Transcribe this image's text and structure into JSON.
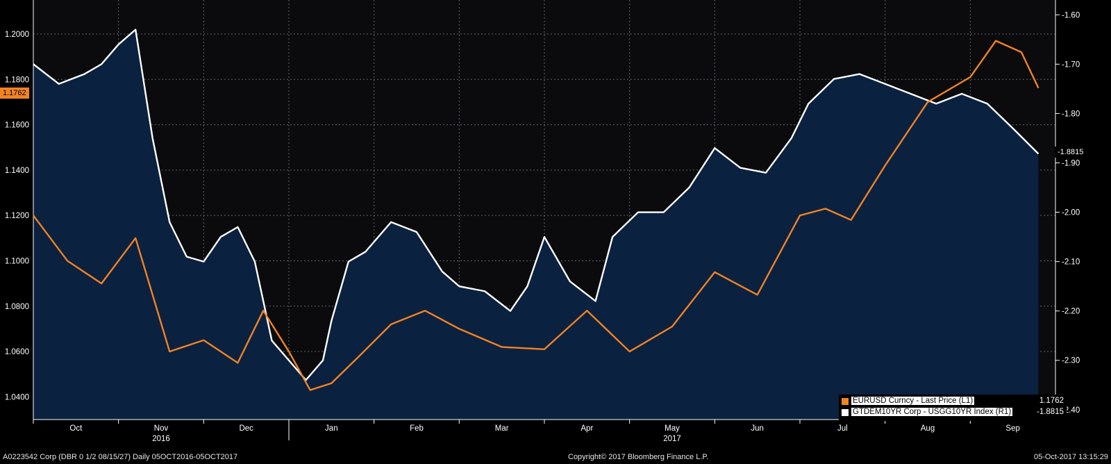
{
  "colors": {
    "background": "#000000",
    "plot_top": "#0b0b0d",
    "area_fill": "#0b2140",
    "eurusd": "#f28322",
    "yield_spread": "#ffffff",
    "grid": "#5a6470"
  },
  "chart_data": {
    "type": "line",
    "x_labels": [
      "Oct",
      "Nov",
      "Dec",
      "Jan",
      "Feb",
      "Mar",
      "Apr",
      "May",
      "Jun",
      "Jul",
      "Aug",
      "Sep"
    ],
    "year_labels": [
      "2016",
      "2017"
    ],
    "left_axis": {
      "ylim": [
        1.03,
        1.215
      ],
      "ticks": [
        "1.2000",
        "1.1800",
        "1.1600",
        "1.1400",
        "1.1200",
        "1.1000",
        "1.0800",
        "1.0600",
        "1.0400"
      ]
    },
    "right_axis": {
      "ylim": [
        -2.42,
        -1.57
      ],
      "ticks": [
        "-1.60",
        "-1.70",
        "-1.80",
        "-1.90",
        "-2.00",
        "-2.10",
        "-2.20",
        "-2.30",
        "-2.40"
      ]
    },
    "series": [
      {
        "name": "EURUSD Curncy - Last Price (L1)",
        "axis": "left",
        "last_value": "1.1762",
        "x": [
          0,
          0.4,
          0.8,
          1.2,
          1.6,
          2.0,
          2.4,
          2.7,
          3.0,
          3.25,
          3.5,
          3.8,
          4.2,
          4.6,
          5.0,
          5.5,
          6.0,
          6.5,
          7.0,
          7.5,
          8.0,
          8.5,
          9.0,
          9.3,
          9.6,
          10.0,
          10.5,
          11.0,
          11.3,
          11.6,
          11.8
        ],
        "y": [
          1.12,
          1.1,
          1.09,
          1.11,
          1.06,
          1.065,
          1.055,
          1.078,
          1.06,
          1.043,
          1.046,
          1.057,
          1.072,
          1.078,
          1.07,
          1.062,
          1.061,
          1.078,
          1.06,
          1.071,
          1.095,
          1.085,
          1.12,
          1.123,
          1.118,
          1.142,
          1.17,
          1.181,
          1.197,
          1.192,
          1.1762
        ]
      },
      {
        "name": "GTDEM10YR Corp - USGG10YR Index (R1)",
        "axis": "right",
        "last_value": "-1.8815",
        "x": [
          0,
          0.3,
          0.6,
          0.8,
          1.0,
          1.2,
          1.4,
          1.6,
          1.8,
          2.0,
          2.2,
          2.4,
          2.6,
          2.8,
          3.0,
          3.2,
          3.4,
          3.5,
          3.7,
          3.9,
          4.2,
          4.5,
          4.8,
          5.0,
          5.3,
          5.6,
          5.8,
          6.0,
          6.3,
          6.6,
          6.8,
          7.1,
          7.4,
          7.7,
          8.0,
          8.3,
          8.6,
          8.9,
          9.1,
          9.4,
          9.7,
          10.0,
          10.3,
          10.6,
          10.9,
          11.2,
          11.5,
          11.8
        ],
        "y": [
          -1.7,
          -1.74,
          -1.72,
          -1.7,
          -1.66,
          -1.63,
          -1.85,
          -2.02,
          -2.09,
          -2.1,
          -2.05,
          -2.03,
          -2.1,
          -2.26,
          -2.3,
          -2.34,
          -2.3,
          -2.22,
          -2.1,
          -2.08,
          -2.02,
          -2.04,
          -2.12,
          -2.15,
          -2.16,
          -2.2,
          -2.15,
          -2.05,
          -2.14,
          -2.18,
          -2.05,
          -2.0,
          -2.0,
          -1.95,
          -1.87,
          -1.91,
          -1.92,
          -1.85,
          -1.78,
          -1.73,
          -1.72,
          -1.74,
          -1.76,
          -1.78,
          -1.76,
          -1.78,
          -1.83,
          -1.8815
        ]
      }
    ],
    "legend_position": "bottom-right",
    "grid": true
  },
  "tags": {
    "left_last": "1.1762",
    "right_last": "-1.8815"
  },
  "footer": {
    "left": "A0223542 Corp (DBR 0 1/2 08/15/27)  Daily 05OCT2016-05OCT2017",
    "center": "Copyright© 2017 Bloomberg Finance L.P.",
    "right": "05-Oct-2017 13:15:29"
  }
}
